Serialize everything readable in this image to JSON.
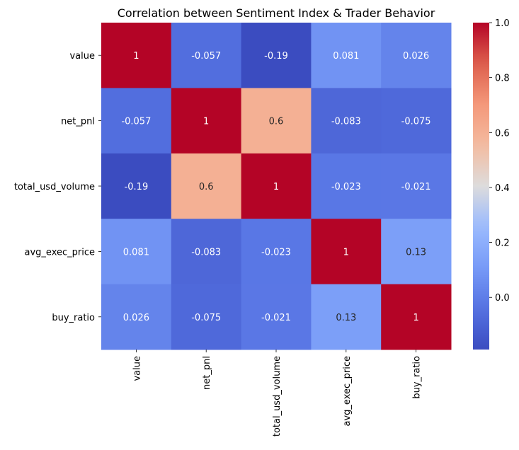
{
  "chart_data": {
    "type": "heatmap",
    "title": "Correlation between Sentiment Index & Trader Behavior",
    "xlabel": "",
    "ylabel": "",
    "x_categories": [
      "value",
      "net_pnl",
      "total_usd_volume",
      "avg_exec_price",
      "buy_ratio"
    ],
    "y_categories": [
      "value",
      "net_pnl",
      "total_usd_volume",
      "avg_exec_price",
      "buy_ratio"
    ],
    "values": [
      [
        1,
        -0.057,
        -0.19,
        0.081,
        0.026
      ],
      [
        -0.057,
        1,
        0.6,
        -0.083,
        -0.075
      ],
      [
        -0.19,
        0.6,
        1,
        -0.023,
        -0.021
      ],
      [
        0.081,
        -0.083,
        -0.023,
        1,
        0.13
      ],
      [
        0.026,
        -0.075,
        -0.021,
        0.13,
        1
      ]
    ],
    "value_labels": [
      [
        "1",
        "-0.057",
        "-0.19",
        "0.081",
        "0.026"
      ],
      [
        "-0.057",
        "1",
        "0.6",
        "-0.083",
        "-0.075"
      ],
      [
        "-0.19",
        "0.6",
        "1",
        "-0.023",
        "-0.021"
      ],
      [
        "0.081",
        "-0.083",
        "-0.023",
        "1",
        "0.13"
      ],
      [
        "0.026",
        "-0.075",
        "-0.021",
        "0.13",
        "1"
      ]
    ],
    "colormap": "coolwarm",
    "vmin": -0.19,
    "vmax": 1,
    "colorbar_ticks": [
      0.0,
      0.2,
      0.4,
      0.6,
      0.8,
      1.0
    ],
    "colorbar_tick_labels": [
      "0.0",
      "0.2",
      "0.4",
      "0.6",
      "0.8",
      "1.0"
    ]
  }
}
